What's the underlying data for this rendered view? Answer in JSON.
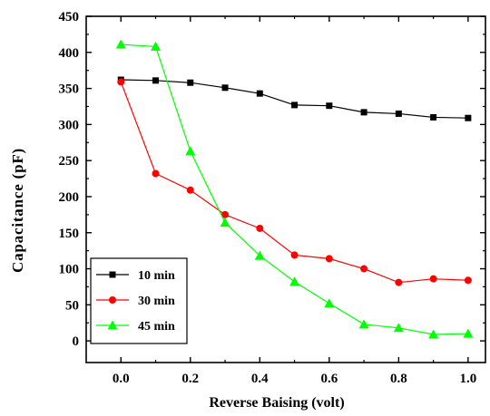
{
  "chart_data": {
    "type": "line",
    "xlabel": "Reverse Baising (volt)",
    "ylabel": "Capacitance (pF)",
    "xlim": [
      -0.1,
      1.05
    ],
    "ylim": [
      -30,
      450
    ],
    "x_ticks": [
      0.0,
      0.2,
      0.4,
      0.6,
      0.8,
      1.0
    ],
    "x_tick_labels": [
      "0.0",
      "0.2",
      "0.4",
      "0.6",
      "0.8",
      "1.0"
    ],
    "y_ticks": [
      0,
      50,
      100,
      150,
      200,
      250,
      300,
      350,
      400,
      450
    ],
    "y_tick_labels": [
      "0",
      "50",
      "100",
      "150",
      "200",
      "250",
      "300",
      "350",
      "400",
      "450"
    ],
    "grid": false,
    "legend_position": "bottom-left",
    "x": [
      0.0,
      0.1,
      0.2,
      0.3,
      0.4,
      0.5,
      0.6,
      0.7,
      0.8,
      0.9,
      1.0
    ],
    "series": [
      {
        "name": "10 min",
        "color": "#000000",
        "marker": "square",
        "values": [
          362,
          361,
          358,
          351,
          343,
          327,
          326,
          317,
          315,
          310,
          309
        ]
      },
      {
        "name": "30 min",
        "color": "#ff0000",
        "marker": "circle",
        "values": [
          359,
          232,
          209,
          175,
          156,
          119,
          114,
          100,
          81,
          86,
          84
        ]
      },
      {
        "name": "45 min",
        "color": "#00ff00",
        "marker": "triangle",
        "values": [
          411,
          408,
          263,
          164,
          118,
          82,
          52,
          23,
          18,
          9,
          10
        ]
      }
    ]
  }
}
